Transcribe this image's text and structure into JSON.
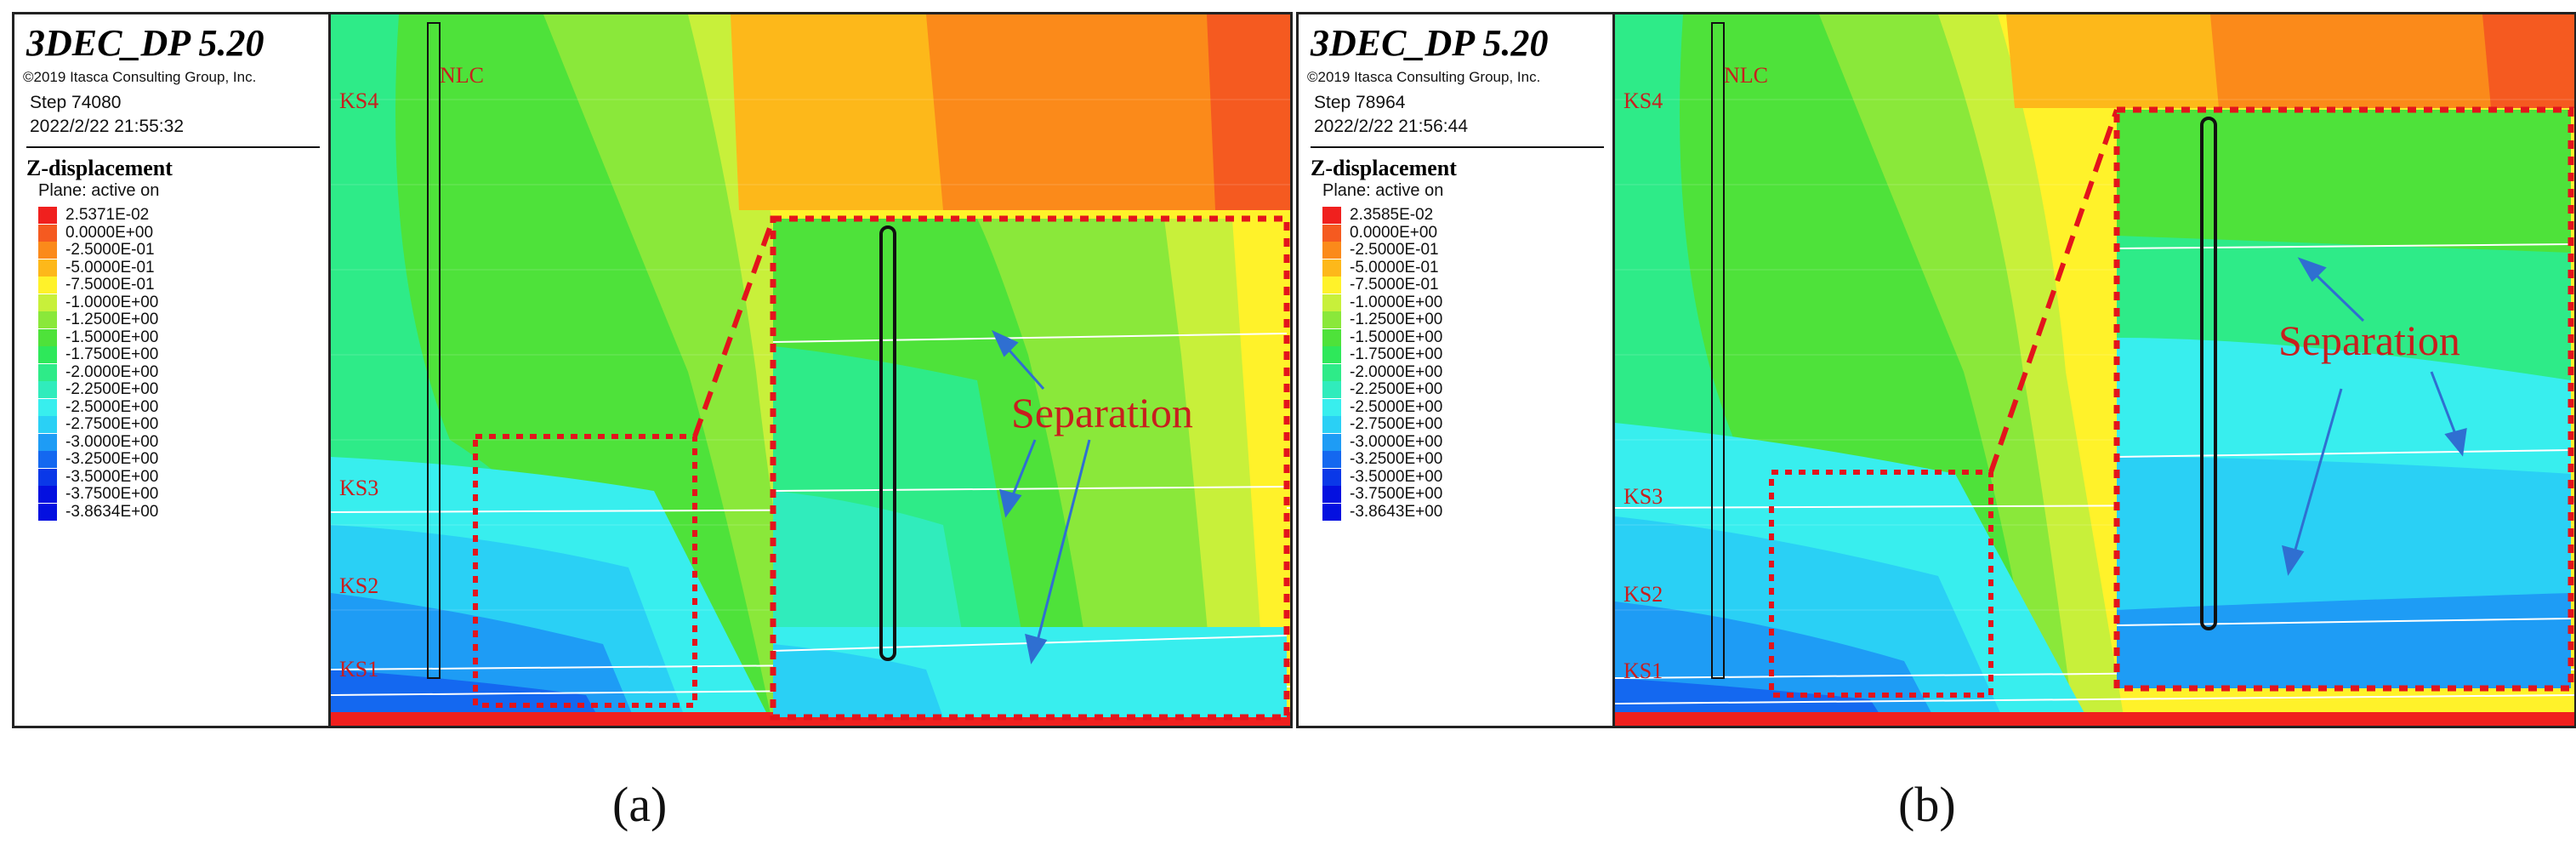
{
  "software": "3DEC_DP 5.20",
  "copyright": "©2019 Itasca Consulting Group, Inc.",
  "contour_title": "Z-displacement",
  "plane": "Plane: active on",
  "layers": {
    "ks4": "KS4",
    "ks3": "KS3",
    "ks2": "KS2",
    "ks1": "KS1",
    "nlc": "NLC"
  },
  "separation_label": "Separation",
  "colors": {
    "scale": [
      "#f0201e",
      "#f55a20",
      "#fb8a1a",
      "#fdb81a",
      "#fff22a",
      "#c8f03a",
      "#8ae83a",
      "#4ee23a",
      "#2ee85a",
      "#2eeb88",
      "#30ecbc",
      "#38eeee",
      "#2ad0f5",
      "#1e9cf5",
      "#1468f0",
      "#0a38e8",
      "#0410e0"
    ],
    "dashed_box": "#e3141c",
    "arrow": "#2f6fd1",
    "label_red": "#c81e1e"
  },
  "panels": [
    {
      "step": "Step 74080",
      "date": "2022/2/22 21:55:32",
      "levels": [
        "2.5371E-02",
        "0.0000E+00",
        "-2.5000E-01",
        "-5.0000E-01",
        "-7.5000E-01",
        "-1.0000E+00",
        "-1.2500E+00",
        "-1.5000E+00",
        "-1.7500E+00",
        "-2.0000E+00",
        "-2.2500E+00",
        "-2.5000E+00",
        "-2.7500E+00",
        "-3.0000E+00",
        "-3.2500E+00",
        "-3.5000E+00",
        "-3.7500E+00",
        "-3.8634E+00"
      ],
      "caption": "(a)"
    },
    {
      "step": "Step 78964",
      "date": "2022/2/22 21:56:44",
      "levels": [
        "2.3585E-02",
        "0.0000E+00",
        "-2.5000E-01",
        "-5.0000E-01",
        "-7.5000E-01",
        "-1.0000E+00",
        "-1.2500E+00",
        "-1.5000E+00",
        "-1.7500E+00",
        "-2.0000E+00",
        "-2.2500E+00",
        "-2.5000E+00",
        "-2.7500E+00",
        "-3.0000E+00",
        "-3.2500E+00",
        "-3.5000E+00",
        "-3.7500E+00",
        "-3.8643E+00"
      ],
      "caption": "(b)"
    }
  ]
}
